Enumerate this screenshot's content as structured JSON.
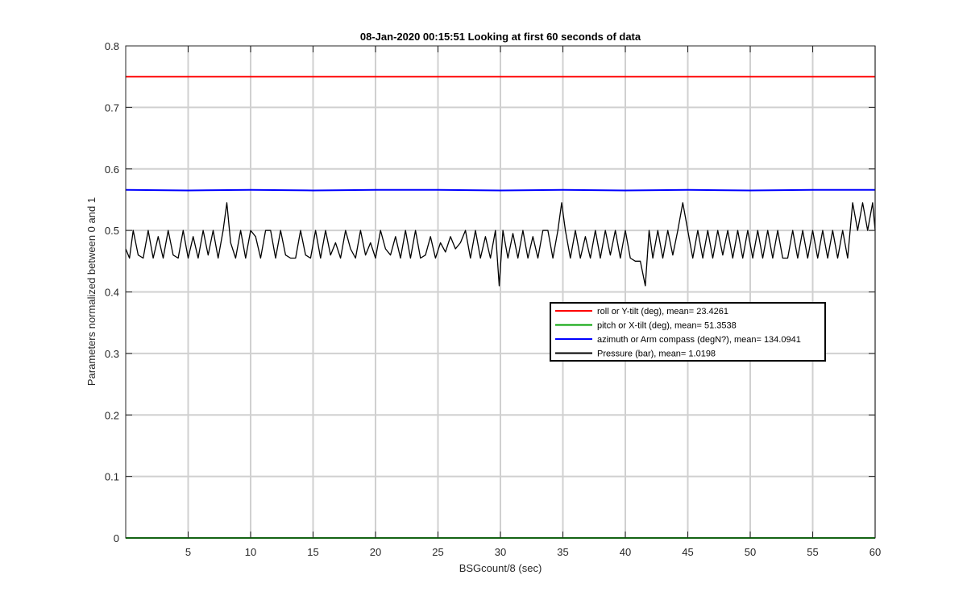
{
  "chart_data": {
    "type": "line",
    "title": "08-Jan-2020 00:15:51 Looking at first 60 seconds of data",
    "xlabel": "BSGcount/8 (sec)",
    "ylabel": "Parameters normalized between 0 and 1",
    "xlim": [
      0,
      60
    ],
    "ylim": [
      0,
      0.8
    ],
    "xticks": [
      5,
      10,
      15,
      20,
      25,
      30,
      35,
      40,
      45,
      50,
      55,
      60
    ],
    "yticks": [
      0,
      0.1,
      0.2,
      0.3,
      0.4,
      0.5,
      0.6,
      0.7,
      0.8
    ],
    "xtick_labels": [
      "5",
      "10",
      "15",
      "20",
      "25",
      "30",
      "35",
      "40",
      "45",
      "50",
      "55",
      "60"
    ],
    "ytick_labels": [
      "0",
      "0.1",
      "0.2",
      "0.3",
      "0.4",
      "0.5",
      "0.6",
      "0.7",
      "0.8"
    ],
    "grid": true,
    "legend_position": "center-right",
    "series": [
      {
        "name": "roll or Y-tilt (deg), mean= 23.4261",
        "color": "#ff0000",
        "x": [
          0,
          60
        ],
        "y": [
          0.75,
          0.75
        ]
      },
      {
        "name": "pitch or X-tilt (deg), mean= 51.3538",
        "color": "#00a000",
        "x": [
          0,
          60
        ],
        "y": [
          0.0,
          0.0
        ]
      },
      {
        "name": "azimuth or Arm compass (degN?), mean= 134.0941",
        "color": "#0000ff",
        "x": [
          0,
          5,
          10,
          15,
          20,
          25,
          30,
          35,
          40,
          45,
          50,
          55,
          60
        ],
        "y": [
          0.566,
          0.565,
          0.566,
          0.565,
          0.566,
          0.566,
          0.565,
          0.566,
          0.565,
          0.566,
          0.565,
          0.566,
          0.566
        ]
      },
      {
        "name": "Pressure (bar), mean= 1.0198",
        "color": "#000000",
        "x": [
          0,
          0.3,
          0.6,
          1.0,
          1.4,
          1.8,
          2.2,
          2.6,
          3.0,
          3.4,
          3.8,
          4.2,
          4.6,
          5.0,
          5.4,
          5.8,
          6.2,
          6.6,
          7.0,
          7.4,
          7.8,
          8.1,
          8.4,
          8.8,
          9.2,
          9.6,
          10.0,
          10.4,
          10.8,
          11.2,
          11.6,
          12.0,
          12.4,
          12.8,
          13.2,
          13.6,
          14.0,
          14.4,
          14.8,
          15.2,
          15.6,
          16.0,
          16.4,
          16.8,
          17.2,
          17.6,
          18.0,
          18.4,
          18.8,
          19.2,
          19.6,
          20.0,
          20.4,
          20.8,
          21.2,
          21.6,
          22.0,
          22.4,
          22.8,
          23.2,
          23.6,
          24.0,
          24.4,
          24.8,
          25.2,
          25.6,
          26.0,
          26.4,
          26.8,
          27.2,
          27.6,
          28.0,
          28.4,
          28.8,
          29.2,
          29.6,
          29.9,
          30.2,
          30.6,
          31.0,
          31.4,
          31.8,
          32.2,
          32.6,
          33.0,
          33.4,
          33.8,
          34.2,
          34.6,
          34.9,
          35.2,
          35.6,
          36.0,
          36.4,
          36.8,
          37.2,
          37.6,
          38.0,
          38.4,
          38.8,
          39.2,
          39.6,
          40.0,
          40.4,
          40.8,
          41.2,
          41.6,
          41.9,
          42.2,
          42.6,
          43.0,
          43.4,
          43.8,
          44.2,
          44.6,
          45.0,
          45.4,
          45.8,
          46.2,
          46.6,
          47.0,
          47.4,
          47.8,
          48.2,
          48.6,
          49.0,
          49.4,
          49.8,
          50.2,
          50.6,
          51.0,
          51.4,
          51.8,
          52.2,
          52.6,
          53.0,
          53.4,
          53.8,
          54.2,
          54.6,
          55.0,
          55.4,
          55.8,
          56.2,
          56.6,
          57.0,
          57.4,
          57.8,
          58.2,
          58.6,
          59.0,
          59.4,
          59.8,
          60.0
        ],
        "y": [
          0.47,
          0.455,
          0.5,
          0.46,
          0.455,
          0.5,
          0.455,
          0.49,
          0.455,
          0.5,
          0.46,
          0.455,
          0.5,
          0.455,
          0.49,
          0.455,
          0.5,
          0.46,
          0.5,
          0.455,
          0.5,
          0.545,
          0.48,
          0.455,
          0.5,
          0.455,
          0.5,
          0.49,
          0.455,
          0.5,
          0.5,
          0.455,
          0.5,
          0.46,
          0.455,
          0.455,
          0.5,
          0.46,
          0.455,
          0.5,
          0.455,
          0.5,
          0.46,
          0.48,
          0.455,
          0.5,
          0.47,
          0.455,
          0.5,
          0.46,
          0.48,
          0.455,
          0.5,
          0.47,
          0.46,
          0.49,
          0.455,
          0.5,
          0.455,
          0.5,
          0.455,
          0.46,
          0.49,
          0.455,
          0.48,
          0.465,
          0.49,
          0.47,
          0.48,
          0.5,
          0.455,
          0.5,
          0.455,
          0.49,
          0.455,
          0.5,
          0.41,
          0.5,
          0.455,
          0.495,
          0.455,
          0.5,
          0.455,
          0.49,
          0.455,
          0.5,
          0.5,
          0.455,
          0.5,
          0.545,
          0.5,
          0.455,
          0.5,
          0.455,
          0.49,
          0.455,
          0.5,
          0.455,
          0.5,
          0.46,
          0.5,
          0.455,
          0.5,
          0.455,
          0.45,
          0.45,
          0.41,
          0.5,
          0.455,
          0.5,
          0.455,
          0.5,
          0.46,
          0.5,
          0.545,
          0.5,
          0.455,
          0.5,
          0.455,
          0.5,
          0.455,
          0.5,
          0.46,
          0.5,
          0.455,
          0.5,
          0.455,
          0.5,
          0.455,
          0.5,
          0.455,
          0.5,
          0.455,
          0.5,
          0.455,
          0.455,
          0.5,
          0.455,
          0.5,
          0.455,
          0.5,
          0.455,
          0.5,
          0.455,
          0.5,
          0.455,
          0.5,
          0.455,
          0.545,
          0.5,
          0.545,
          0.5,
          0.545,
          0.5
        ]
      }
    ]
  }
}
